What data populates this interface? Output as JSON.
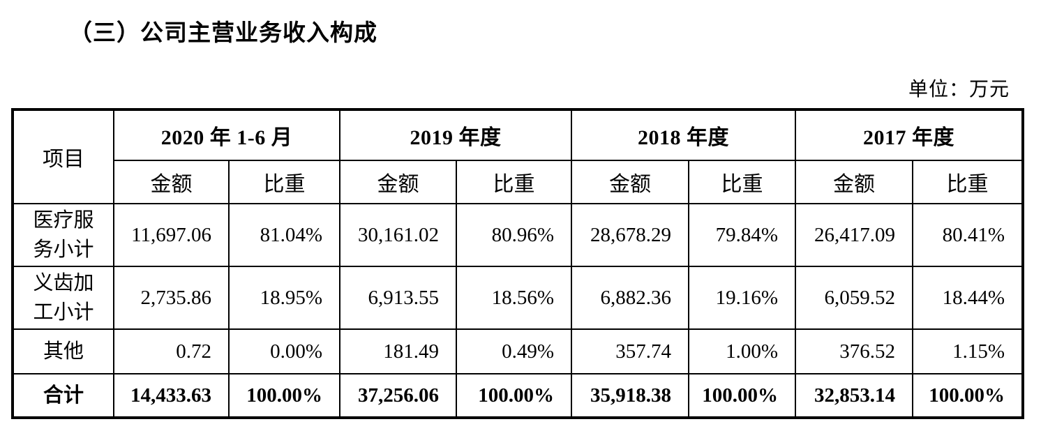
{
  "page": {
    "title": "（三）公司主营业务收入构成",
    "unit_note": "单位：万元"
  },
  "table": {
    "item_header": "项目",
    "col_groups": [
      {
        "label": "2020 年 1-6 月",
        "amount_label": "金额",
        "ratio_label": "比重"
      },
      {
        "label": "2019 年度",
        "amount_label": "金额",
        "ratio_label": "比重"
      },
      {
        "label": "2018 年度",
        "amount_label": "金额",
        "ratio_label": "比重"
      },
      {
        "label": "2017 年度",
        "amount_label": "金额",
        "ratio_label": "比重"
      }
    ],
    "rows": [
      {
        "item": "医疗服务小计",
        "values": [
          "11,697.06",
          "81.04%",
          "30,161.02",
          "80.96%",
          "28,678.29",
          "79.84%",
          "26,417.09",
          "80.41%"
        ],
        "bold": false
      },
      {
        "item": "义齿加工小计",
        "values": [
          "2,735.86",
          "18.95%",
          "6,913.55",
          "18.56%",
          "6,882.36",
          "19.16%",
          "6,059.52",
          "18.44%"
        ],
        "bold": false
      },
      {
        "item": "其他",
        "values": [
          "0.72",
          "0.00%",
          "181.49",
          "0.49%",
          "357.74",
          "1.00%",
          "376.52",
          "1.15%"
        ],
        "bold": false
      },
      {
        "item": "合计",
        "values": [
          "14,433.63",
          "100.00%",
          "37,256.06",
          "100.00%",
          "35,918.38",
          "100.00%",
          "32,853.14",
          "100.00%"
        ],
        "bold": true
      }
    ]
  }
}
